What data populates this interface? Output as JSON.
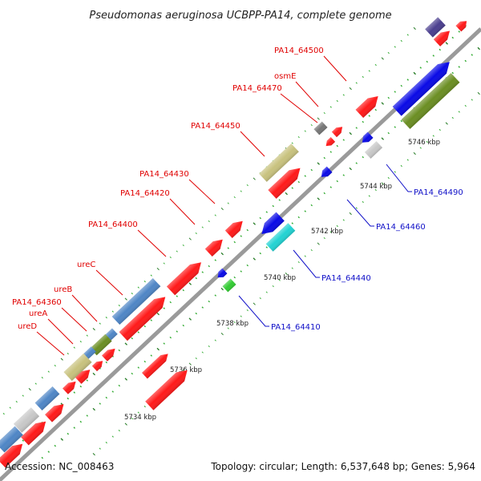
{
  "title": "Pseudomonas aeruginosa UCBPP-PA14, complete genome",
  "accession_label": "Accession: NC_008463",
  "topology_label": "Topology: circular; Length: 6,537,648 bp; Genes: 5,964",
  "colors": {
    "forward_label": "#e00000",
    "reverse_label": "#1010c8",
    "backbone": "#9a9a9a",
    "tick_major": "#227a22",
    "tick_minor": "#2aa82a",
    "gene_red": "#ff1a1a",
    "gene_blue": "#0a0ae6",
    "gene_steel": "#4f86c6",
    "gene_olive": "#6b8e23",
    "gene_khaki": "#c8c27e",
    "gene_gray": "#c8c8c8",
    "gene_darkgray": "#777777",
    "gene_cyan": "#22d3d3",
    "gene_green": "#33cc33",
    "gene_purple": "#4b3f8f"
  },
  "tick_labels": [
    "5734 kbp",
    "5736 kbp",
    "5738 kbp",
    "5740 kbp",
    "5742 kbp",
    "5744 kbp",
    "5746 kbp"
  ],
  "gene_labels_forward": [
    "PA14_64500",
    "osmE",
    "PA14_64470",
    "PA14_64450",
    "PA14_64430",
    "PA14_64420",
    "PA14_64400",
    "ureC",
    "ureB",
    "PA14_64360",
    "ureA",
    "ureD"
  ],
  "gene_labels_reverse": [
    "PA14_64490",
    "PA14_64460",
    "PA14_64440",
    "PA14_64410"
  ]
}
